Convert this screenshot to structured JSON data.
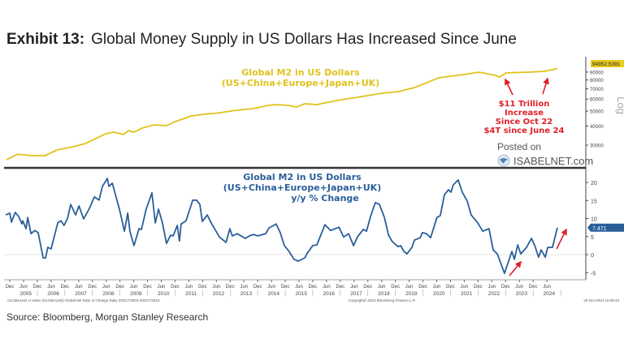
{
  "title": {
    "exhibit": "Exhibit 13:",
    "text": "Global Money Supply in US Dollars Has Increased Since June"
  },
  "source": "Source: Bloomberg, Morgan Stanley Research",
  "watermark": {
    "posted_on": "Posted on",
    "site": "ISABELNET.com"
  },
  "footer": {
    "left": ".GLOBALM2 U Index (GLOBALM2) Global M2 Rate of Change Daily 20OCT2003-20OCT2024",
    "center": "Copyright© 2024 Bloomberg Finance L.P.",
    "right": "20-Oct-2024 10:08:43"
  },
  "annotation": {
    "lines": [
      "$11 Trillion",
      "Increase",
      "Since Oct 22",
      "$4T since June 24"
    ],
    "color": "#e0202a"
  },
  "chart_data": [
    {
      "type": "line",
      "title": [
        "Global M2 in US Dollars",
        "(US+China+Europe+Japan+UK)"
      ],
      "color": "#e0c21a",
      "yscale": "log",
      "ylabel": "Log",
      "ylim": [
        24000,
        97000
      ],
      "yticks": [
        30000,
        40000,
        50000,
        60000,
        70000,
        80000,
        90000
      ],
      "last_value_label": "94952.5391",
      "x": [
        2004.8,
        2005.21,
        2005.74,
        2006.19,
        2006.63,
        2007.22,
        2007.66,
        2008.4,
        2008.69,
        2009.05,
        2009.22,
        2009.43,
        2009.73,
        2010.17,
        2010.61,
        2010.91,
        2011.5,
        2011.94,
        2012.53,
        2013.12,
        2013.71,
        2014.3,
        2014.59,
        2015.04,
        2015.33,
        2015.63,
        2016.07,
        2016.36,
        2016.95,
        2017.54,
        2018.43,
        2019.02,
        2019.61,
        2020.49,
        2021.38,
        2021.96,
        2022.56,
        2022.7,
        2022.94,
        2023.73,
        2024.32,
        2024.8
      ],
      "y": [
        24100,
        26200,
        25600,
        25600,
        27900,
        29300,
        30700,
        35600,
        36500,
        35200,
        37300,
        36500,
        38800,
        40700,
        40200,
        42700,
        46500,
        47700,
        48800,
        50700,
        51900,
        54500,
        55200,
        54500,
        53200,
        55900,
        55200,
        56600,
        59400,
        61600,
        65500,
        67100,
        71200,
        82600,
        86700,
        89900,
        85600,
        83600,
        88900,
        89900,
        91000,
        94952.5391
      ]
    },
    {
      "type": "line",
      "title": [
        "Global M2 in US Dollars",
        "(US+China+Europe+Japan+UK)",
        "y/y % Change"
      ],
      "color": "#2a5f9a",
      "ylim": [
        -7,
        24
      ],
      "yticks": [
        -5,
        0,
        5,
        10,
        15,
        20
      ],
      "last_value_label": "7.471",
      "x": [
        2004.77,
        2004.92,
        2004.98,
        2005.12,
        2005.24,
        2005.36,
        2005.39,
        2005.51,
        2005.57,
        2005.69,
        2005.83,
        2005.95,
        2006.13,
        2006.22,
        2006.3,
        2006.42,
        2006.66,
        2006.78,
        2006.89,
        2007.01,
        2007.13,
        2007.31,
        2007.43,
        2007.6,
        2007.81,
        2007.99,
        2008.16,
        2008.28,
        2008.46,
        2008.52,
        2008.64,
        2008.9,
        2009.08,
        2009.2,
        2009.28,
        2009.43,
        2009.61,
        2009.7,
        2009.87,
        2010.08,
        2010.2,
        2010.32,
        2010.46,
        2010.61,
        2010.76,
        2010.85,
        2011.0,
        2011.08,
        2011.14,
        2011.32,
        2011.56,
        2011.7,
        2011.82,
        2011.91,
        2012.09,
        2012.23,
        2012.53,
        2012.77,
        2012.91,
        2013.0,
        2013.18,
        2013.47,
        2013.62,
        2013.77,
        2013.92,
        2014.21,
        2014.33,
        2014.59,
        2014.74,
        2014.89,
        2015.04,
        2015.24,
        2015.39,
        2015.63,
        2015.72,
        2015.92,
        2016.07,
        2016.36,
        2016.57,
        2016.87,
        2017.04,
        2017.22,
        2017.4,
        2017.54,
        2017.75,
        2017.87,
        2018.02,
        2018.19,
        2018.34,
        2018.52,
        2018.67,
        2018.81,
        2019.02,
        2019.11,
        2019.23,
        2019.34,
        2019.52,
        2019.61,
        2019.82,
        2019.9,
        2020.05,
        2020.2,
        2020.43,
        2020.55,
        2020.7,
        2020.85,
        2020.94,
        2021.02,
        2021.2,
        2021.35,
        2021.53,
        2021.67,
        2021.91,
        2022.09,
        2022.32,
        2022.47,
        2022.62,
        2022.88,
        2023.15,
        2023.24,
        2023.36,
        2023.47,
        2023.68,
        2023.86,
        2023.98,
        2024.12,
        2024.21,
        2024.36,
        2024.45,
        2024.62,
        2024.8
      ],
      "y": [
        11.0,
        11.5,
        9.0,
        11.7,
        10.6,
        8.5,
        9.4,
        7.2,
        10.3,
        5.8,
        6.7,
        6.1,
        -0.9,
        -0.9,
        2.0,
        1.6,
        8.8,
        9.4,
        8.1,
        9.9,
        13.9,
        11.0,
        13.5,
        9.9,
        12.8,
        16.0,
        15.1,
        18.9,
        21.1,
        18.9,
        19.8,
        12.6,
        6.5,
        11.5,
        6.5,
        2.5,
        7.2,
        7.0,
        12.6,
        17.1,
        8.8,
        12.6,
        8.8,
        3.1,
        5.4,
        5.2,
        8.1,
        3.8,
        8.5,
        9.4,
        15.1,
        15.1,
        13.9,
        9.2,
        11.0,
        8.8,
        4.9,
        3.4,
        7.2,
        5.2,
        5.8,
        4.5,
        5.2,
        5.6,
        5.2,
        5.8,
        7.4,
        8.5,
        6.1,
        2.5,
        1.1,
        -1.3,
        -1.8,
        -0.9,
        0.4,
        2.5,
        2.7,
        8.3,
        6.7,
        7.6,
        4.9,
        5.8,
        2.5,
        4.9,
        7.0,
        6.5,
        10.6,
        14.4,
        13.9,
        10.3,
        5.4,
        3.6,
        2.2,
        2.5,
        0.9,
        0.2,
        2.0,
        4.0,
        4.7,
        6.1,
        5.8,
        4.7,
        10.3,
        10.8,
        16.6,
        18.0,
        17.3,
        19.3,
        20.7,
        17.3,
        14.8,
        11.0,
        8.8,
        6.5,
        7.2,
        1.3,
        0.2,
        -5.2,
        0.9,
        -1.3,
        2.7,
        0.2,
        2.0,
        4.5,
        2.5,
        -0.7,
        1.3,
        -0.7,
        2.0,
        2.0,
        7.471
      ]
    }
  ],
  "x_axis": {
    "half_year_labels": [
      "Dec",
      "Jun"
    ],
    "years": [
      "2005",
      "2006",
      "2007",
      "2008",
      "2009",
      "2010",
      "2011",
      "2012",
      "2013",
      "2014",
      "2015",
      "2016",
      "2017",
      "2018",
      "2019",
      "2020",
      "2021",
      "2022",
      "2023",
      "2024"
    ]
  }
}
